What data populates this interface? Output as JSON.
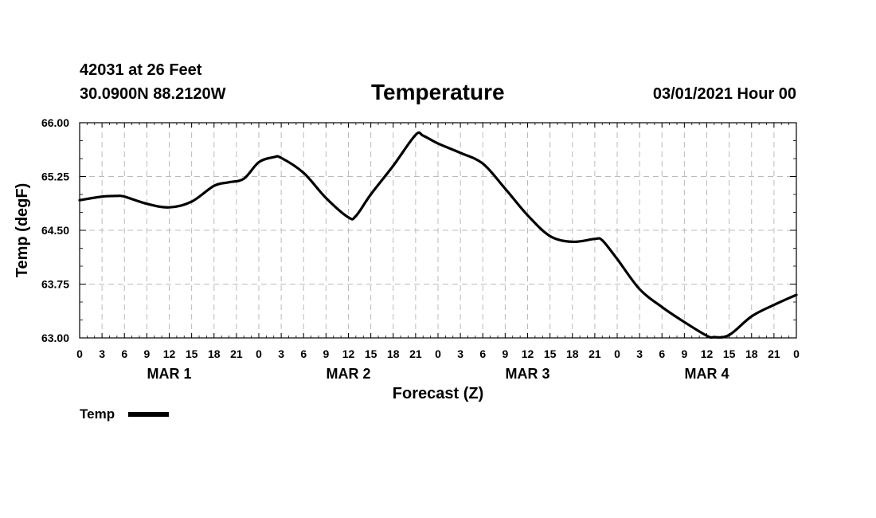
{
  "header": {
    "station": "42031 at 26 Feet",
    "coords": "30.0900N 88.2120W",
    "title": "Temperature",
    "date_hour": "03/01/2021 Hour 00"
  },
  "chart_data": {
    "type": "line",
    "title": "Temperature",
    "xlabel": "Forecast (Z)",
    "ylabel": "Temp (degF)",
    "xlim": [
      0,
      96
    ],
    "ylim": [
      63.0,
      66.0
    ],
    "yticks": [
      "66.00",
      "65.25",
      "64.50",
      "63.75",
      "63.00"
    ],
    "ytick_values": [
      66.0,
      65.25,
      64.5,
      63.75,
      63.0
    ],
    "xtick_labels": [
      "0",
      "3",
      "6",
      "9",
      "12",
      "15",
      "18",
      "21",
      "0",
      "3",
      "6",
      "9",
      "12",
      "15",
      "18",
      "21",
      "0",
      "3",
      "6",
      "9",
      "12",
      "15",
      "18",
      "21",
      "0",
      "3",
      "6",
      "9",
      "12",
      "15",
      "18",
      "21",
      "0"
    ],
    "xtick_hours": [
      0,
      3,
      6,
      9,
      12,
      15,
      18,
      21,
      24,
      27,
      30,
      33,
      36,
      39,
      42,
      45,
      48,
      51,
      54,
      57,
      60,
      63,
      66,
      69,
      72,
      75,
      78,
      81,
      84,
      87,
      90,
      93,
      96
    ],
    "day_labels": [
      {
        "label": "MAR 1",
        "hour": 12
      },
      {
        "label": "MAR 2",
        "hour": 36
      },
      {
        "label": "MAR 3",
        "hour": 60
      },
      {
        "label": "MAR 4",
        "hour": 84
      }
    ],
    "grid": true,
    "legend": "bottom-left",
    "series": [
      {
        "name": "Temp",
        "color": "#000000",
        "x": [
          0,
          3,
          5,
          6,
          9,
          12,
          15,
          18,
          20,
          22,
          24,
          26,
          27,
          30,
          33,
          36,
          37,
          39,
          42,
          45,
          46,
          48,
          51,
          54,
          57,
          60,
          63,
          66,
          69,
          70,
          72,
          75,
          78,
          81,
          84,
          85,
          87,
          90,
          93,
          96
        ],
        "values": [
          64.92,
          64.97,
          64.98,
          64.97,
          64.87,
          64.82,
          64.9,
          65.12,
          65.17,
          65.22,
          65.45,
          65.52,
          65.51,
          65.3,
          64.95,
          64.68,
          64.7,
          65.0,
          65.4,
          65.83,
          65.82,
          65.71,
          65.58,
          65.43,
          65.08,
          64.71,
          64.42,
          64.34,
          64.38,
          64.36,
          64.1,
          63.68,
          63.43,
          63.22,
          63.03,
          63.01,
          63.04,
          63.3,
          63.46,
          63.6
        ]
      }
    ]
  }
}
